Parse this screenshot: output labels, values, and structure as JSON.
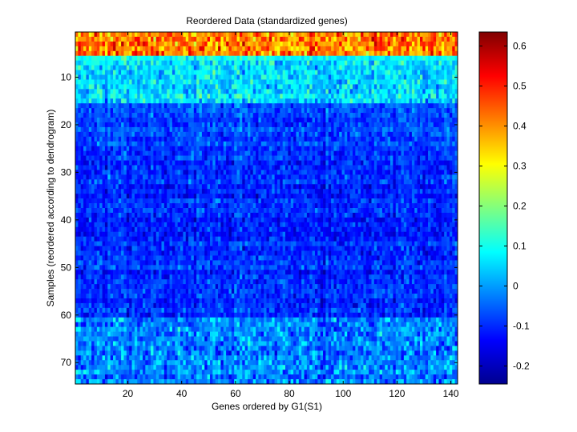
{
  "chart_data": {
    "type": "heatmap",
    "title": "Reordered Data (standardized genes)",
    "xlabel": "Genes ordered by G1(S1)",
    "ylabel": "Samples (reordered according to dendrogram)",
    "n_cols": 142,
    "n_rows": 74,
    "xlim": [
      0.5,
      142.5
    ],
    "ylim": [
      0.5,
      74.5
    ],
    "xticks": [
      20,
      40,
      60,
      80,
      100,
      120,
      140
    ],
    "yticks": [
      10,
      20,
      30,
      40,
      50,
      60,
      70
    ],
    "colormap": "jet",
    "clim": [
      -0.245,
      0.635
    ],
    "colorbar_ticks": [
      0.6,
      0.5,
      0.4,
      0.3,
      0.2,
      0.1,
      0,
      -0.1,
      -0.2
    ],
    "row_profile": [
      {
        "rows": [
          1,
          5
        ],
        "mean": 0.42,
        "spread": 0.1
      },
      {
        "rows": [
          6,
          6
        ],
        "mean": 0.08,
        "spread": 0.04
      },
      {
        "rows": [
          7,
          15
        ],
        "mean": 0.05,
        "spread": 0.07
      },
      {
        "rows": [
          16,
          24
        ],
        "mean": -0.07,
        "spread": 0.05
      },
      {
        "rows": [
          25,
          60
        ],
        "mean": -0.1,
        "spread": 0.05
      },
      {
        "rows": [
          61,
          74
        ],
        "mean": -0.02,
        "spread": 0.07
      }
    ],
    "grid": false
  }
}
